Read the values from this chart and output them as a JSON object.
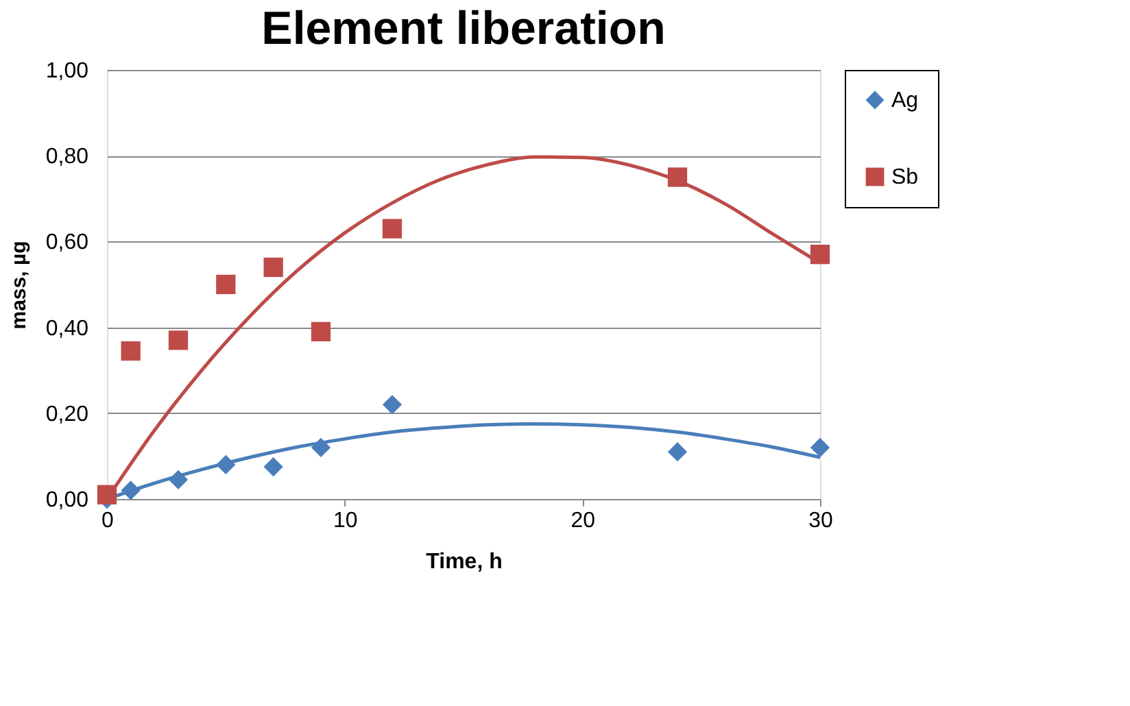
{
  "chart_data": {
    "type": "scatter",
    "title": "Element liberation",
    "xlabel": "Time, h",
    "ylabel": "mass, µg",
    "xlim": [
      0,
      30
    ],
    "xticks": [
      0,
      10,
      20,
      30
    ],
    "ylim": [
      0,
      1
    ],
    "yticks": [
      {
        "value": 0,
        "label": "0,00"
      },
      {
        "value": 0.2,
        "label": "0,20"
      },
      {
        "value": 0.4,
        "label": "0,40"
      },
      {
        "value": 0.6,
        "label": "0,60"
      },
      {
        "value": 0.8,
        "label": "0,80"
      },
      {
        "value": 1,
        "label": "1,00"
      }
    ],
    "grid": "y",
    "legend": "top right",
    "series": [
      {
        "name": "Ag",
        "color": "#4a7ebb",
        "marker": "diamond",
        "x": [
          0,
          1,
          3,
          5,
          7,
          9,
          12,
          24,
          30
        ],
        "values": [
          0.0,
          0.02,
          0.045,
          0.08,
          0.075,
          0.12,
          0.22,
          0.11,
          0.12
        ]
      },
      {
        "name": "Sb",
        "color": "#be4b48",
        "marker": "square",
        "x": [
          0,
          1,
          3,
          5,
          7,
          9,
          12,
          24,
          30
        ],
        "values": [
          0.01,
          0.345,
          0.37,
          0.5,
          0.54,
          0.39,
          0.63,
          0.75,
          0.57
        ]
      },
      {
        "type": "line",
        "color": "#4a7ebb",
        "x": [
          0,
          2,
          4,
          6,
          8,
          10,
          12,
          14,
          16,
          18,
          20,
          22,
          24,
          26,
          28,
          30
        ],
        "values": [
          0,
          0.037,
          0.069,
          0.097,
          0.121,
          0.14,
          0.156,
          0.166,
          0.173,
          0.175,
          0.173,
          0.167,
          0.156,
          0.14,
          0.121,
          0.097
        ]
      },
      {
        "type": "line",
        "color": "#be4b48",
        "x": [
          0,
          2,
          4,
          6,
          8,
          10,
          12,
          14,
          16,
          18,
          20,
          22,
          24,
          26,
          28,
          30
        ],
        "values": [
          0,
          0.16,
          0.301,
          0.425,
          0.532,
          0.62,
          0.69,
          0.744,
          0.779,
          0.797,
          0.796,
          0.778,
          0.742,
          0.688,
          0.618,
          0.55
        ]
      }
    ]
  }
}
